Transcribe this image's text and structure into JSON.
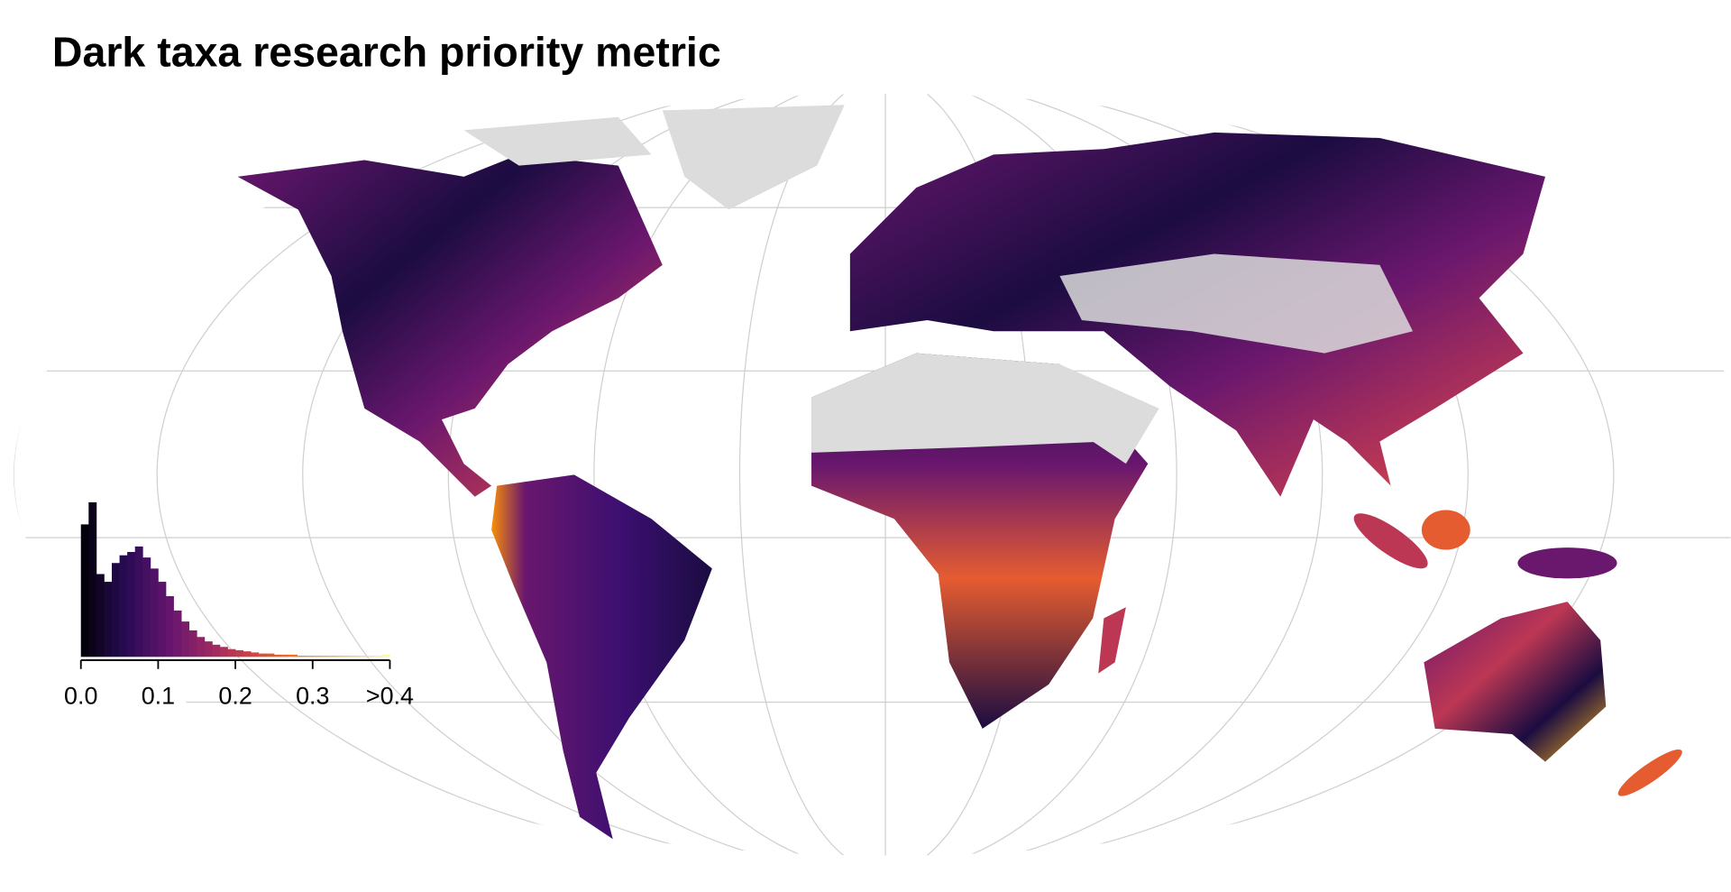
{
  "chart_data": {
    "type": "histogram",
    "title": "Dark taxa research priority metric",
    "bins": [
      0,
      0.01,
      0.02,
      0.03,
      0.04,
      0.05,
      0.06,
      0.07,
      0.08,
      0.09,
      0.1,
      0.11,
      0.12,
      0.13,
      0.14,
      0.15,
      0.16,
      0.17,
      0.18,
      0.19,
      0.2,
      0.21,
      0.22,
      0.23,
      0.24,
      0.25,
      0.26,
      0.27,
      0.28,
      0.29,
      0.3,
      0.31,
      0.32,
      0.33,
      0.34,
      0.35,
      0.36,
      0.37,
      0.38,
      0.39,
      0.4
    ],
    "values": [
      120,
      140,
      75,
      68,
      85,
      92,
      95,
      100,
      90,
      80,
      68,
      55,
      42,
      32,
      24,
      18,
      14,
      11,
      9,
      7,
      6,
      5,
      4,
      3,
      3,
      2,
      2,
      2,
      1,
      1,
      1,
      1,
      1,
      1,
      1,
      1,
      1,
      1,
      1,
      2
    ],
    "xlim": [
      0,
      0.4
    ],
    "ylim": [
      0,
      150
    ],
    "xticks": [
      {
        "value": 0,
        "label": "0.0"
      },
      0.1,
      0.2,
      0.3,
      {
        "value": 0.4,
        "label": ">0.4"
      }
    ]
  }
}
